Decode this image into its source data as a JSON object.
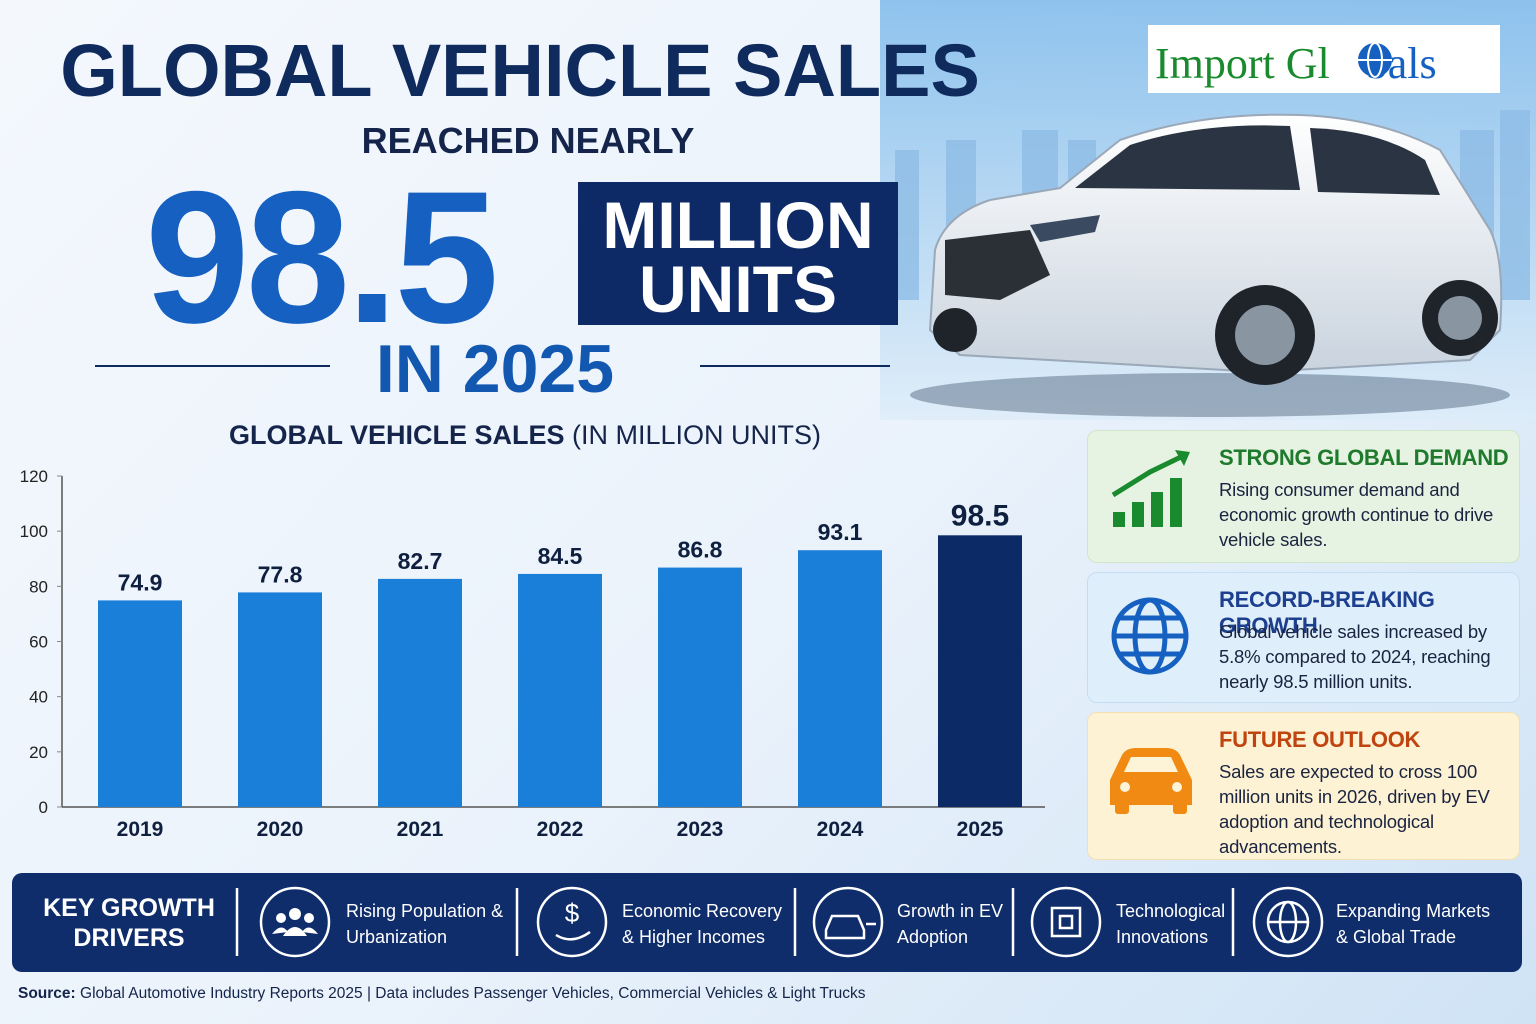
{
  "header": {
    "title": "GLOBAL VEHICLE SALES",
    "subtitle": "REACHED NEARLY",
    "headline_number": "98.5",
    "unit_line1": "MILLION",
    "unit_line2": "UNITS",
    "year_line": "IN 2025"
  },
  "logo": {
    "text_start": "Import Gl",
    "text_end": "bals"
  },
  "chart_data": {
    "type": "bar",
    "title": "GLOBAL VEHICLE SALES",
    "title_note": "(IN MILLION UNITS)",
    "categories": [
      "2019",
      "2020",
      "2021",
      "2022",
      "2023",
      "2024",
      "2025"
    ],
    "values": [
      74.9,
      77.8,
      82.7,
      84.5,
      86.8,
      93.1,
      98.5
    ],
    "colors": [
      "#1a7fd8",
      "#1a7fd8",
      "#1a7fd8",
      "#1a7fd8",
      "#1a7fd8",
      "#1a7fd8",
      "#0c2a66"
    ],
    "ylim": [
      0,
      120
    ],
    "yticks": [
      0,
      20,
      40,
      60,
      80,
      100,
      120
    ],
    "grid": false
  },
  "cards": [
    {
      "title": "STRONG GLOBAL DEMAND",
      "body": "Rising consumer demand and economic growth continue to drive vehicle sales."
    },
    {
      "title": "RECORD-BREAKING GROWTH",
      "body": "Global vehicle sales increased by 5.8% compared to 2024, reaching nearly 98.5 million units."
    },
    {
      "title": "FUTURE OUTLOOK",
      "body": "Sales are expected to cross 100 million units in 2026, driven by EV adoption and technological advancements."
    }
  ],
  "drivers": {
    "label": "KEY GROWTH DRIVERS",
    "items": [
      "Rising Population & Urbanization",
      "Economic Recovery & Higher Incomes",
      "Growth in EV Adoption",
      "Technological Innovations",
      "Expanding Markets & Global Trade"
    ]
  },
  "source": {
    "label": "Source:",
    "text": "Global Automotive Industry Reports 2025 | Data includes Passenger Vehicles, Commercial Vehicles & Light Trucks"
  }
}
